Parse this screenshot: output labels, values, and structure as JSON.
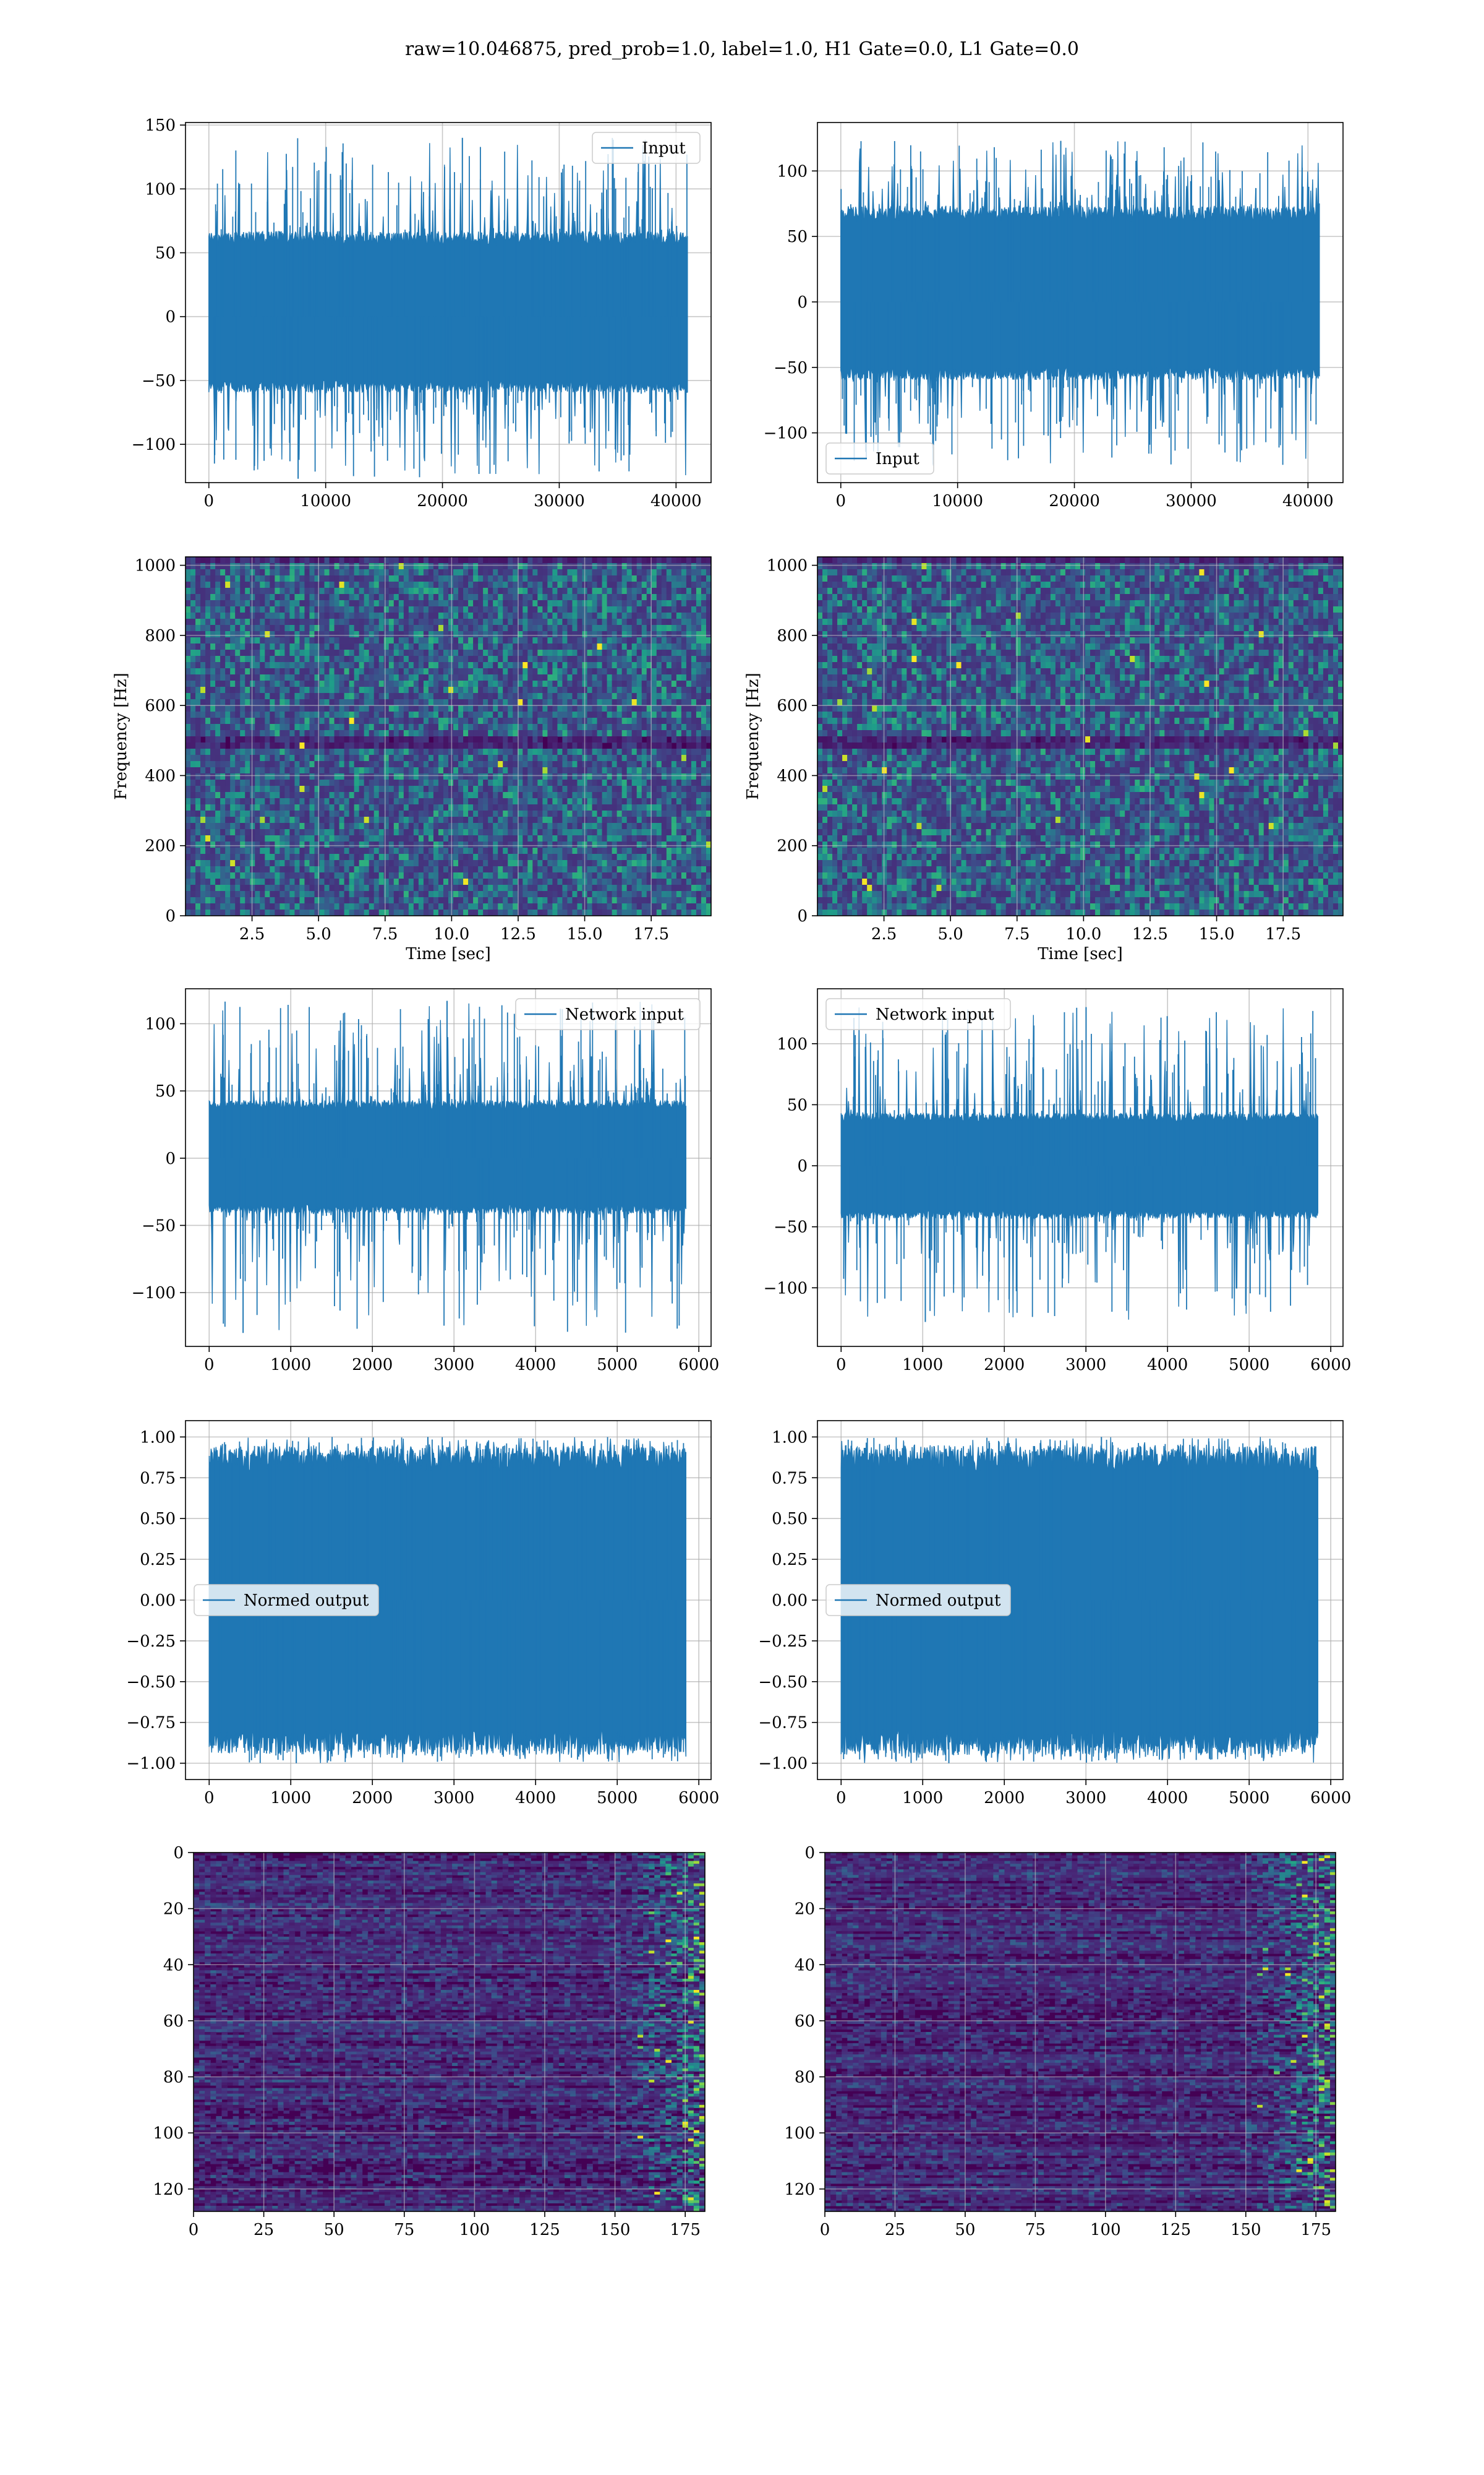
{
  "figure": {
    "title": "raw=10.046875, pred_prob=1.0, label=1.0, H1 Gate=0.0, L1 Gate=0.0",
    "colors": {
      "series": "#1f77b4",
      "grid": "#b0b0b0",
      "viridis_low": "#440154",
      "viridis_mid": "#31688e",
      "viridis_high": "#fde725"
    }
  },
  "chart_data": [
    {
      "id": "input-h1",
      "type": "line",
      "legend": "Input",
      "legend_loc": "upper right",
      "xlim": [
        -2000,
        43000
      ],
      "ylim": [
        -130,
        152
      ],
      "x_n": 40960,
      "xticks": [
        0,
        10000,
        20000,
        30000,
        40000
      ],
      "yticks": [
        -100,
        -50,
        0,
        50,
        100,
        150
      ],
      "envelope_pos": 62,
      "envelope_neg": -55,
      "peak_max": 140,
      "peak_min": -127,
      "grid": true
    },
    {
      "id": "input-l1",
      "type": "line",
      "legend": "Input",
      "legend_loc": "lower left",
      "xlim": [
        -2000,
        43000
      ],
      "ylim": [
        -138,
        137
      ],
      "x_n": 40960,
      "xticks": [
        0,
        10000,
        20000,
        30000,
        40000
      ],
      "yticks": [
        -100,
        -50,
        0,
        50,
        100
      ],
      "envelope_pos": 68,
      "envelope_neg": -55,
      "peak_max": 123,
      "peak_min": -125,
      "grid": true
    },
    {
      "id": "spec-h1",
      "type": "heatmap",
      "xlabel": "Time [sec]",
      "ylabel": "Frequency [Hz]",
      "xlim": [
        0,
        19.75
      ],
      "ylim": [
        0,
        1024
      ],
      "xticks": [
        2.5,
        5.0,
        7.5,
        10.0,
        12.5,
        15.0,
        17.5
      ],
      "yticks": [
        0,
        200,
        400,
        600,
        800,
        1000
      ],
      "colormap": "viridis",
      "grid": true
    },
    {
      "id": "spec-l1",
      "type": "heatmap",
      "xlabel": "Time [sec]",
      "ylabel": "Frequency [Hz]",
      "xlim": [
        0,
        19.75
      ],
      "ylim": [
        0,
        1024
      ],
      "xticks": [
        2.5,
        5.0,
        7.5,
        10.0,
        12.5,
        15.0,
        17.5
      ],
      "yticks": [
        0,
        200,
        400,
        600,
        800,
        1000
      ],
      "colormap": "viridis",
      "grid": true
    },
    {
      "id": "network-input-h1",
      "type": "line",
      "legend": "Network input",
      "legend_loc": "upper right",
      "xlim": [
        -290,
        6150
      ],
      "ylim": [
        -140,
        126
      ],
      "x_n": 5840,
      "xticks": [
        0,
        1000,
        2000,
        3000,
        4000,
        5000,
        6000
      ],
      "yticks": [
        -100,
        -50,
        0,
        50,
        100
      ],
      "envelope_pos": 40,
      "envelope_neg": -38,
      "peak_max": 117,
      "peak_min": -130,
      "grid": true
    },
    {
      "id": "network-input-l1",
      "type": "line",
      "legend": "Network input",
      "legend_loc": "upper left",
      "xlim": [
        -290,
        6150
      ],
      "ylim": [
        -148,
        145
      ],
      "x_n": 5840,
      "xticks": [
        0,
        1000,
        2000,
        3000,
        4000,
        5000,
        6000
      ],
      "yticks": [
        -100,
        -50,
        0,
        50,
        100
      ],
      "envelope_pos": 40,
      "envelope_neg": -40,
      "peak_max": 130,
      "peak_min": -128,
      "grid": true
    },
    {
      "id": "normed-output-h1",
      "type": "line",
      "legend": "Normed output",
      "legend_loc": "center left",
      "xlim": [
        -290,
        6150
      ],
      "ylim": [
        -1.1,
        1.1
      ],
      "x_n": 5840,
      "xticks": [
        0,
        1000,
        2000,
        3000,
        4000,
        5000,
        6000
      ],
      "yticks": [
        -1.0,
        -0.75,
        -0.5,
        -0.25,
        0.0,
        0.25,
        0.5,
        0.75,
        1.0
      ],
      "envelope_pos": 0.88,
      "envelope_neg": -0.88,
      "peak_max": 1.0,
      "peak_min": -1.0,
      "grid": true
    },
    {
      "id": "normed-output-l1",
      "type": "line",
      "legend": "Normed output",
      "legend_loc": "center left",
      "xlim": [
        -290,
        6150
      ],
      "ylim": [
        -1.1,
        1.1
      ],
      "x_n": 5840,
      "xticks": [
        0,
        1000,
        2000,
        3000,
        4000,
        5000,
        6000
      ],
      "yticks": [
        -1.0,
        -0.75,
        -0.5,
        -0.25,
        0.0,
        0.25,
        0.5,
        0.75,
        1.0
      ],
      "envelope_pos": 0.88,
      "envelope_neg": -0.88,
      "peak_max": 1.0,
      "peak_min": -1.0,
      "grid": true
    },
    {
      "id": "features-h1",
      "type": "heatmap",
      "xlim": [
        0,
        182
      ],
      "ylim": [
        128,
        0
      ],
      "xticks": [
        0,
        25,
        50,
        75,
        100,
        125,
        150,
        175
      ],
      "yticks": [
        0,
        20,
        40,
        60,
        80,
        100,
        120
      ],
      "colormap": "viridis",
      "grid": true
    },
    {
      "id": "features-l1",
      "type": "heatmap",
      "xlim": [
        0,
        182
      ],
      "ylim": [
        128,
        0
      ],
      "xticks": [
        0,
        25,
        50,
        75,
        100,
        125,
        150,
        175
      ],
      "yticks": [
        0,
        20,
        40,
        60,
        80,
        100,
        120
      ],
      "colormap": "viridis",
      "grid": true
    }
  ]
}
